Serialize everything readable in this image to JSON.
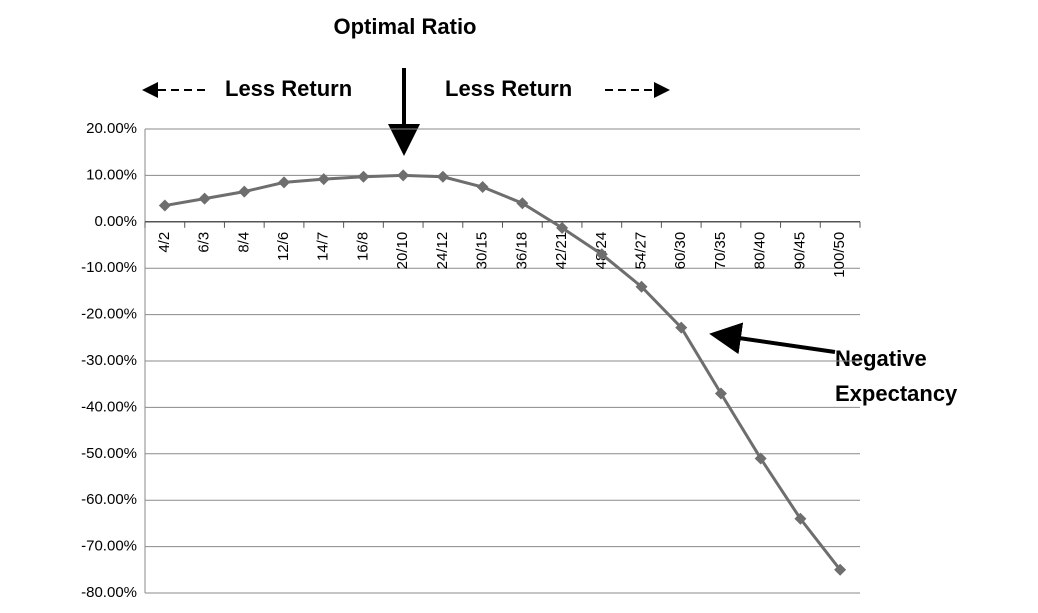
{
  "chart_data": {
    "type": "line",
    "title": "Optimal Ratio",
    "annotations": {
      "left": "Less Return",
      "right": "Less Return",
      "negative": [
        "Negative",
        "Expectancy"
      ]
    },
    "categories": [
      "4/2",
      "6/3",
      "8/4",
      "12/6",
      "14/7",
      "16/8",
      "20/10",
      "24/12",
      "30/15",
      "36/18",
      "42/21",
      "48/24",
      "54/27",
      "60/30",
      "70/35",
      "80/40",
      "90/45",
      "100/50"
    ],
    "series": [
      {
        "color": "#6e6e6e",
        "values": [
          3.5,
          5,
          6.5,
          8.5,
          9.2,
          9.7,
          10,
          9.7,
          7.5,
          4,
          -1.3,
          -7,
          -14,
          -22.8,
          -37,
          -51,
          -64,
          -75
        ]
      }
    ],
    "ylim": [
      -80,
      20
    ],
    "yticks": [
      {
        "value": -80,
        "label": "-80.00%"
      },
      {
        "value": -70,
        "label": "-70.00%"
      },
      {
        "value": -60,
        "label": "-60.00%"
      },
      {
        "value": -50,
        "label": "-50.00%"
      },
      {
        "value": -40,
        "label": "-40.00%"
      },
      {
        "value": -30,
        "label": "-30.00%"
      },
      {
        "value": -20,
        "label": "-20.00%"
      },
      {
        "value": -10,
        "label": "-10.00%"
      },
      {
        "value": 0,
        "label": "0.00%"
      },
      {
        "value": 10,
        "label": "10.00%"
      },
      {
        "value": 20,
        "label": "20.00%"
      }
    ],
    "grid": true
  }
}
